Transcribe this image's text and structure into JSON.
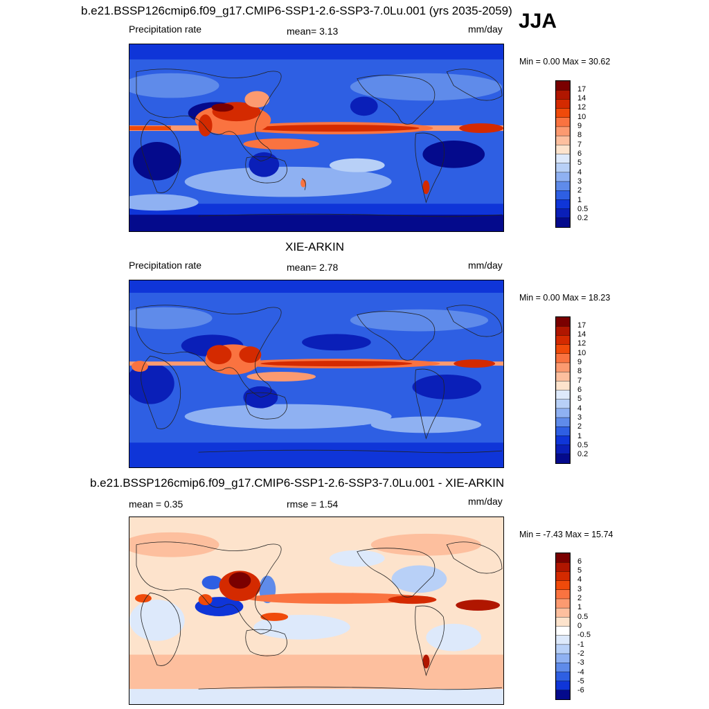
{
  "season": "JJA",
  "panels": [
    {
      "title": "b.e21.BSSP126cmip6.f09_g17.CMIP6-SSP1-2.6-SSP3-7.0Lu.001 (yrs 2035-2059)",
      "left_label": "Precipitation rate",
      "center_label": "mean=   3.13",
      "units": "mm/day",
      "minmax": "Min =   0.00 Max =  30.62",
      "colorbar": {
        "labels": [
          "17",
          "14",
          "12",
          "10",
          "9",
          "8",
          "7",
          "6",
          "5",
          "4",
          "3",
          "2",
          "1",
          "0.5",
          "0.2"
        ],
        "colors": [
          "#7a0000",
          "#b01600",
          "#d42a00",
          "#f04a0a",
          "#fa7340",
          "#fc9a70",
          "#fdbf9e",
          "#fde3cc",
          "#dde9fb",
          "#b8d0f7",
          "#8fb1f2",
          "#5f8bea",
          "#2e5fe3",
          "#0f35d8",
          "#0a1fb8",
          "#040a8c"
        ]
      }
    },
    {
      "title": "XIE-ARKIN",
      "left_label": "Precipitation rate",
      "center_label": "mean=   2.78",
      "units": "mm/day",
      "minmax": "Min =   0.00 Max =  18.23",
      "colorbar": {
        "labels": [
          "17",
          "14",
          "12",
          "10",
          "9",
          "8",
          "7",
          "6",
          "5",
          "4",
          "3",
          "2",
          "1",
          "0.5",
          "0.2"
        ],
        "colors": [
          "#7a0000",
          "#b01600",
          "#d42a00",
          "#f04a0a",
          "#fa7340",
          "#fc9a70",
          "#fdbf9e",
          "#fde3cc",
          "#dde9fb",
          "#b8d0f7",
          "#8fb1f2",
          "#5f8bea",
          "#2e5fe3",
          "#0f35d8",
          "#0a1fb8",
          "#040a8c"
        ]
      }
    },
    {
      "title": "b.e21.BSSP126cmip6.f09_g17.CMIP6-SSP1-2.6-SSP3-7.0Lu.001 - XIE-ARKIN",
      "left_label": "mean =   0.35",
      "center_label": "rmse =   1.54",
      "units": "mm/day",
      "minmax": "Min =  -7.43 Max =  15.74",
      "colorbar": {
        "labels": [
          "6",
          "5",
          "4",
          "3",
          "2",
          "1",
          "0.5",
          "0",
          "-0.5",
          "-1",
          "-2",
          "-3",
          "-4",
          "-5",
          "-6"
        ],
        "colors": [
          "#7a0000",
          "#b01600",
          "#d42a00",
          "#f04a0a",
          "#fa7340",
          "#fc9a70",
          "#fdbf9e",
          "#fde3cc",
          "#ffffff",
          "#dde9fb",
          "#b8d0f7",
          "#8fb1f2",
          "#5f8bea",
          "#2e5fe3",
          "#0f35d8",
          "#040a8c"
        ]
      }
    }
  ]
}
